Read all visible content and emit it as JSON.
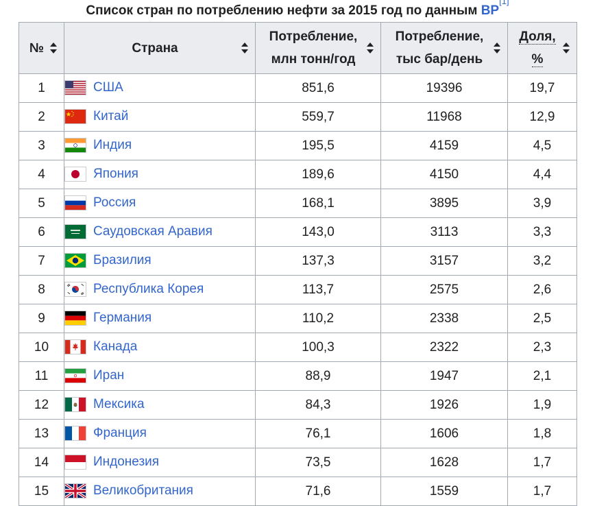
{
  "caption": {
    "text": "Список стран по потреблению нефти за 2015 год по данным ",
    "link": "BP",
    "ref": "[1]"
  },
  "headers": {
    "rank": "№",
    "country": "Страна",
    "mt_line1": "Потребление,",
    "mt_line2": "млн тонн/год",
    "kb_line1": "Потребление,",
    "kb_line2": "тыс бар/день",
    "share_line1": "Доля,",
    "share_line2": "%"
  },
  "rows": [
    {
      "rank": "1",
      "country": "США",
      "flag": "usa-flag-icon",
      "mt": "851,6",
      "kb": "19396",
      "share": "19,7"
    },
    {
      "rank": "2",
      "country": "Китай",
      "flag": "china-flag-icon",
      "mt": "559,7",
      "kb": "11968",
      "share": "12,9"
    },
    {
      "rank": "3",
      "country": "Индия",
      "flag": "india-flag-icon",
      "mt": "195,5",
      "kb": "4159",
      "share": "4,5"
    },
    {
      "rank": "4",
      "country": "Япония",
      "flag": "japan-flag-icon",
      "mt": "189,6",
      "kb": "4150",
      "share": "4,4"
    },
    {
      "rank": "5",
      "country": "Россия",
      "flag": "russia-flag-icon",
      "mt": "168,1",
      "kb": "3895",
      "share": "3,9"
    },
    {
      "rank": "6",
      "country": "Саудовская Аравия",
      "flag": "saudi-arabia-flag-icon",
      "mt": "143,0",
      "kb": "3113",
      "share": "3,3"
    },
    {
      "rank": "7",
      "country": "Бразилия",
      "flag": "brazil-flag-icon",
      "mt": "137,3",
      "kb": "3157",
      "share": "3,2"
    },
    {
      "rank": "8",
      "country": "Республика Корея",
      "flag": "south-korea-flag-icon",
      "mt": "113,7",
      "kb": "2575",
      "share": "2,6"
    },
    {
      "rank": "9",
      "country": "Германия",
      "flag": "germany-flag-icon",
      "mt": "110,2",
      "kb": "2338",
      "share": "2,5"
    },
    {
      "rank": "10",
      "country": "Канада",
      "flag": "canada-flag-icon",
      "mt": "100,3",
      "kb": "2322",
      "share": "2,3"
    },
    {
      "rank": "11",
      "country": "Иран",
      "flag": "iran-flag-icon",
      "mt": "88,9",
      "kb": "1947",
      "share": "2,1"
    },
    {
      "rank": "12",
      "country": "Мексика",
      "flag": "mexico-flag-icon",
      "mt": "84,3",
      "kb": "1926",
      "share": "1,9"
    },
    {
      "rank": "13",
      "country": "Франция",
      "flag": "france-flag-icon",
      "mt": "76,1",
      "kb": "1606",
      "share": "1,8"
    },
    {
      "rank": "14",
      "country": "Индонезия",
      "flag": "indonesia-flag-icon",
      "mt": "73,5",
      "kb": "1628",
      "share": "1,7"
    },
    {
      "rank": "15",
      "country": "Великобритания",
      "flag": "uk-flag-icon",
      "mt": "71,6",
      "kb": "1559",
      "share": "1,7"
    }
  ],
  "colors": {
    "link": "#3366cc",
    "header_bg": "#eaecf0",
    "border": "#a2a9b1"
  }
}
